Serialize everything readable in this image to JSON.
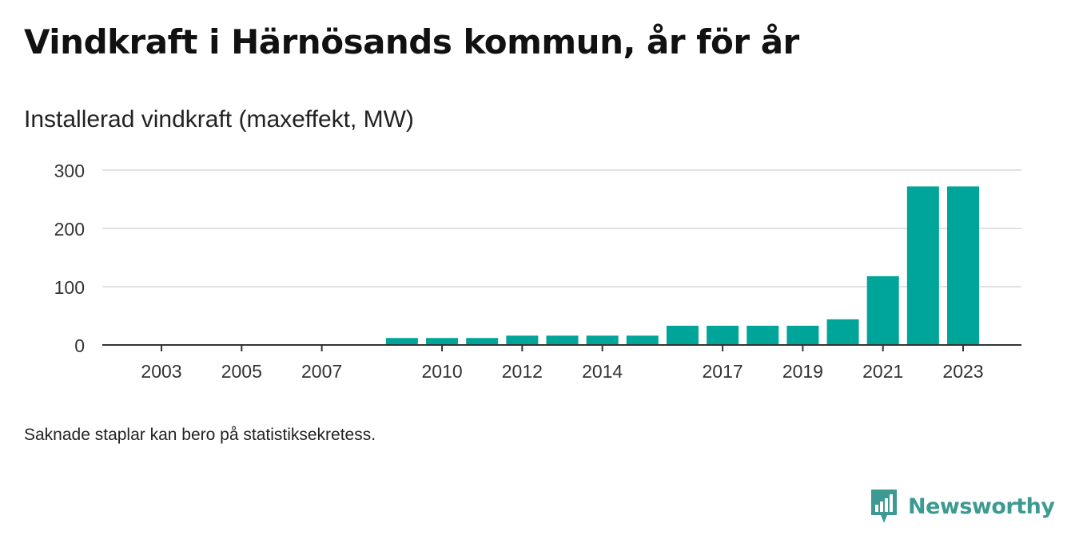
{
  "title": "Vindkraft i Härnösands kommun, år för år",
  "subtitle": "Installerad vindkraft (maxeffekt, MW)",
  "footnote": "Saknade staplar kan bero på statistiksekretess.",
  "brand": {
    "name": "Newsworthy",
    "icon": "newsworthy-logo-icon",
    "color": "#3d9a93"
  },
  "chart_data": {
    "type": "bar",
    "categories": [
      "2003",
      "2004",
      "2005",
      "2006",
      "2007",
      "2008",
      "2009",
      "2010",
      "2011",
      "2012",
      "2013",
      "2014",
      "2015",
      "2016",
      "2017",
      "2018",
      "2019",
      "2020",
      "2021",
      "2022",
      "2023"
    ],
    "values": [
      0,
      null,
      0,
      null,
      0,
      null,
      12,
      12,
      12,
      16,
      16,
      16,
      16,
      33,
      33,
      33,
      33,
      44,
      118,
      272,
      272
    ],
    "x_tick_labels": [
      "2003",
      "2005",
      "2007",
      "2010",
      "2012",
      "2014",
      "2017",
      "2019",
      "2021",
      "2023"
    ],
    "y_ticks": [
      0,
      100,
      200,
      300
    ],
    "ylim": [
      0,
      300
    ],
    "xlabel": "",
    "ylabel": "",
    "grid": true,
    "bar_color": "#00a59a"
  }
}
